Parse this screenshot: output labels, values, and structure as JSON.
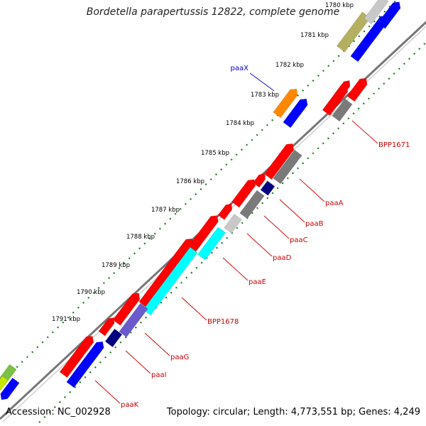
{
  "title": "Bordetella parapertussis 12822, complete genome",
  "accession": "Accession: NC_002928",
  "stats": "Topology: circular; Length: 4,773,551 bp; Genes: 4,249",
  "colors": {
    "backbone": "#888888",
    "tick": "#1a7a1a",
    "cds": "#ff0000",
    "blue": "#0000ff",
    "gray": "#7a7a7a",
    "lightgray": "#c8c8c8",
    "cyan": "#00ffff",
    "navy": "#000080",
    "slate": "#6a5acd",
    "orange": "#ff8800",
    "khaki": "#b5b060",
    "green": "#7bc143",
    "label_red": "#cc0000",
    "label_blue": "#0000cc"
  },
  "kbp_ticks": [
    {
      "label": "1780 kbp"
    },
    {
      "label": "1781 kbp"
    },
    {
      "label": "1782 kbp"
    },
    {
      "label": "1783 kbp"
    },
    {
      "label": "1784 kbp"
    },
    {
      "label": "1785 kbp"
    },
    {
      "label": "1786 kbp"
    },
    {
      "label": "1787 kbp"
    },
    {
      "label": "1788 kbp"
    },
    {
      "label": "1789 kbp"
    },
    {
      "label": "1790 kbp"
    },
    {
      "label": "1791 kbp"
    }
  ],
  "gene_labels": [
    {
      "name": "paaX",
      "color": "blue"
    },
    {
      "name": "BPP1671",
      "color": "red"
    },
    {
      "name": "paaA",
      "color": "red"
    },
    {
      "name": "paaB",
      "color": "red"
    },
    {
      "name": "paaC",
      "color": "red"
    },
    {
      "name": "paaD",
      "color": "red"
    },
    {
      "name": "paaE",
      "color": "red"
    },
    {
      "name": "BPP1678",
      "color": "red"
    },
    {
      "name": "paaG",
      "color": "red"
    },
    {
      "name": "paaI",
      "color": "red"
    },
    {
      "name": "paaK",
      "color": "red"
    }
  ]
}
